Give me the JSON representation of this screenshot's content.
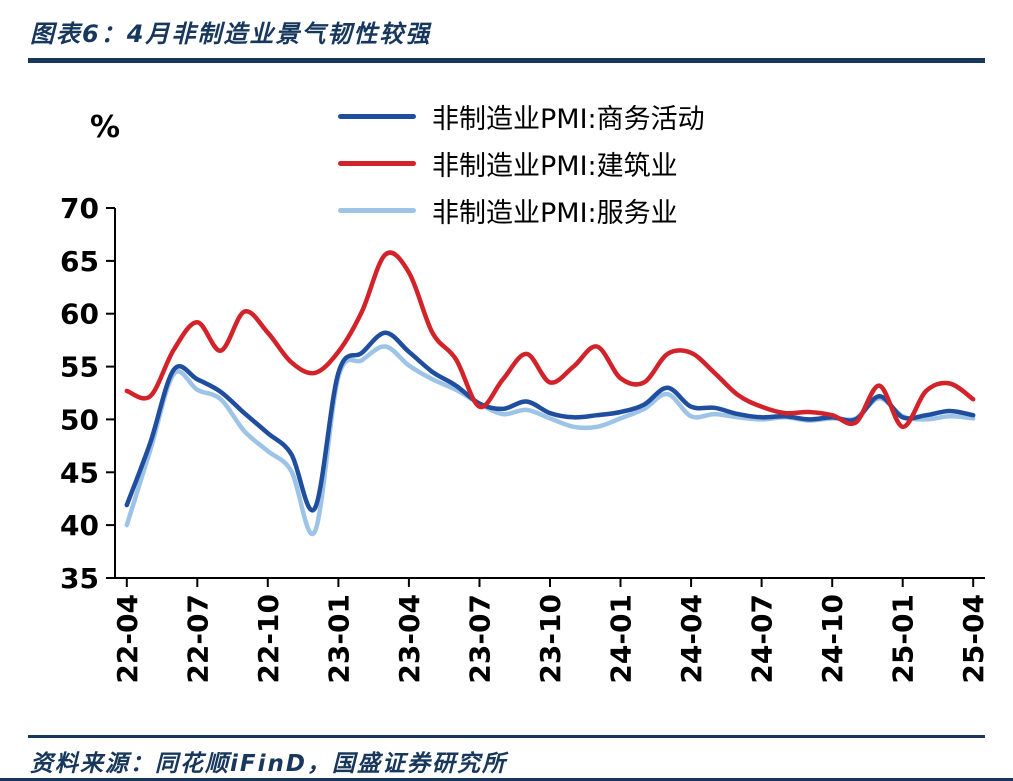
{
  "header": {
    "title": "图表6：4月非制造业景气韧性较强"
  },
  "footer": {
    "source": "资料来源：同花顺iFinD，国盛证券研究所"
  },
  "colors": {
    "accent": "#17375D",
    "axis": "#000000"
  },
  "chart_data": {
    "type": "line",
    "title": "4月非制造业景气韧性较强",
    "ylabel": "%",
    "xlabel": "",
    "ylim": [
      35,
      70
    ],
    "yticks": [
      35,
      40,
      45,
      50,
      55,
      60,
      65,
      70
    ],
    "grid": false,
    "legend_position": "top-center",
    "x": [
      "22-04",
      "22-05",
      "22-06",
      "22-07",
      "22-08",
      "22-09",
      "22-10",
      "22-11",
      "22-12",
      "23-01",
      "23-02",
      "23-03",
      "23-04",
      "23-05",
      "23-06",
      "23-07",
      "23-08",
      "23-09",
      "23-10",
      "23-11",
      "23-12",
      "24-01",
      "24-02",
      "24-03",
      "24-04",
      "24-05",
      "24-06",
      "24-07",
      "24-08",
      "24-09",
      "24-10",
      "24-11",
      "24-12",
      "25-01",
      "25-02",
      "25-03",
      "25-04"
    ],
    "xtick_labels": [
      "22-04",
      "22-07",
      "22-10",
      "23-01",
      "23-04",
      "23-07",
      "23-10",
      "24-01",
      "24-04",
      "24-07",
      "24-10",
      "25-01",
      "25-04"
    ],
    "series": [
      {
        "name": "非制造业PMI:商务活动",
        "color": "#1F4E9F",
        "values": [
          41.9,
          47.8,
          54.7,
          53.8,
          52.6,
          50.6,
          48.7,
          46.7,
          41.6,
          54.4,
          56.3,
          58.2,
          56.4,
          54.5,
          53.2,
          51.5,
          51.0,
          51.7,
          50.6,
          50.2,
          50.4,
          50.7,
          51.4,
          53.0,
          51.2,
          51.1,
          50.5,
          50.2,
          50.3,
          50.0,
          50.2,
          50.0,
          52.2,
          50.2,
          50.4,
          50.8,
          50.4
        ]
      },
      {
        "name": "非制造业PMI:建筑业",
        "color": "#D2232A",
        "values": [
          52.7,
          52.2,
          56.6,
          59.2,
          56.5,
          60.2,
          58.2,
          55.4,
          54.4,
          56.4,
          60.2,
          65.6,
          63.9,
          58.2,
          55.7,
          51.2,
          53.8,
          56.2,
          53.5,
          55.0,
          56.9,
          53.9,
          53.5,
          56.2,
          56.3,
          54.4,
          52.3,
          51.2,
          50.6,
          50.7,
          50.4,
          49.7,
          53.2,
          49.3,
          52.7,
          53.4,
          51.9
        ]
      },
      {
        "name": "非制造业PMI:服务业",
        "color": "#9DC3E6",
        "values": [
          40.0,
          47.1,
          54.3,
          52.8,
          51.9,
          48.9,
          47.0,
          45.1,
          39.4,
          54.0,
          55.6,
          56.9,
          55.1,
          53.8,
          52.8,
          51.5,
          50.5,
          50.9,
          50.1,
          49.3,
          49.3,
          50.1,
          51.0,
          52.4,
          50.3,
          50.5,
          50.2,
          50.0,
          50.2,
          49.9,
          50.1,
          50.1,
          52.0,
          50.3,
          50.0,
          50.3,
          50.1
        ]
      }
    ]
  }
}
